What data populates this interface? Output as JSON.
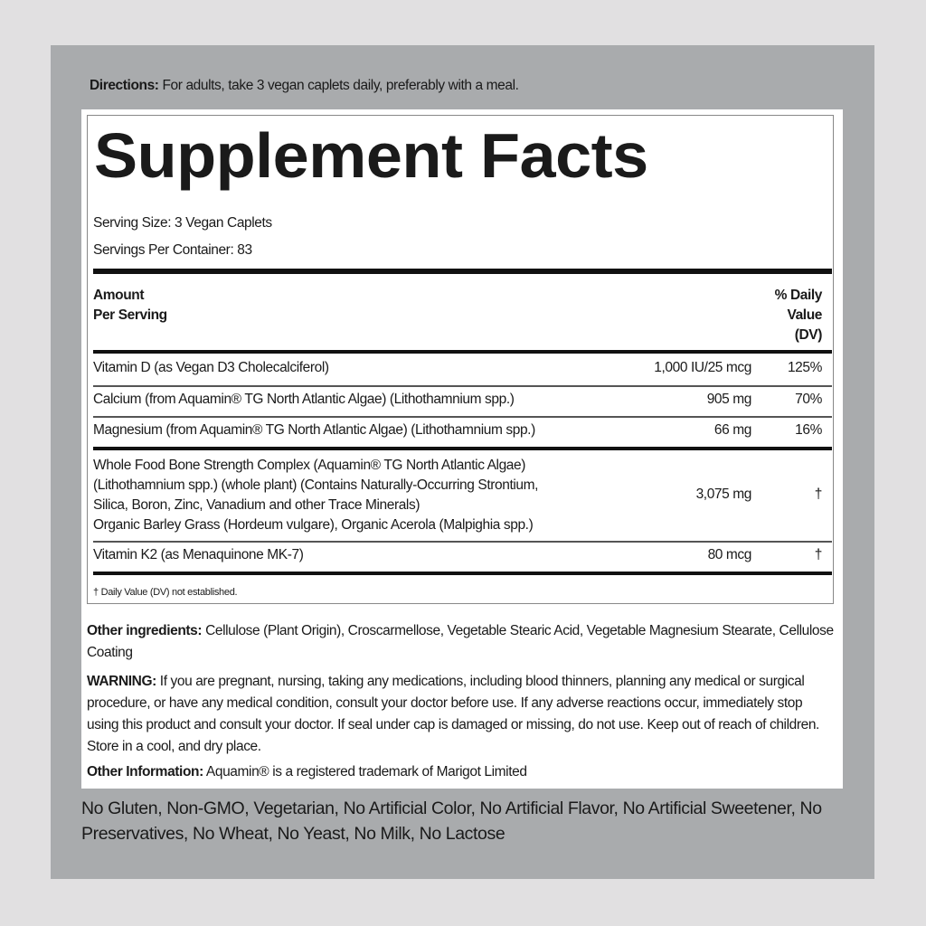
{
  "directions": {
    "label": "Directions:",
    "text": "For adults, take 3 vegan caplets daily, preferably with a meal."
  },
  "title": "Supplement Facts",
  "serving_size": "Serving Size: 3 Vegan Caplets",
  "servings_per_container": "Servings Per Container: 83",
  "header": {
    "amount_line1": "Amount",
    "amount_line2": "Per Serving",
    "dv_line1": "% Daily",
    "dv_line2": "Value",
    "dv_line3": "(DV)"
  },
  "rows": [
    {
      "name": "Vitamin D (as Vegan D3 Cholecalciferol)",
      "amount": "1,000 IU/25 mcg",
      "dv": "125%"
    },
    {
      "name": "Calcium (from Aquamin® TG North Atlantic Algae) (Lithothamnium spp.)",
      "amount": "905 mg",
      "dv": "70%"
    },
    {
      "name": "Magnesium (from Aquamin® TG North Atlantic Algae) (Lithothamnium spp.)",
      "amount": "66 mg",
      "dv": "16%"
    },
    {
      "name_lines": [
        "Whole Food Bone Strength Complex (Aquamin® TG North Atlantic Algae)",
        "(Lithothamnium spp.) (whole plant) (Contains Naturally-Occurring Strontium,",
        "Silica, Boron, Zinc, Vanadium and other Trace Minerals)",
        "Organic Barley Grass (Hordeum vulgare), Organic Acerola (Malpighia spp.)"
      ],
      "amount": "3,075 mg",
      "dv": "†"
    },
    {
      "name": "Vitamin K2 (as Menaquinone MK-7)",
      "amount": "80 mcg",
      "dv": "†"
    }
  ],
  "footnote": "† Daily Value (DV) not established.",
  "other_ingredients": {
    "label": "Other ingredients:",
    "text": "Cellulose (Plant Origin), Croscarmellose, Vegetable Stearic Acid, Vegetable Magnesium Stearate, Cellulose Coating"
  },
  "warning": {
    "label": "WARNING:",
    "text": "If you are pregnant, nursing, taking any medications, including blood thinners, planning any medical or surgical procedure, or have any medical condition, consult your doctor before use. If any adverse reactions occur, immediately stop using this product and consult your doctor. If seal under cap is damaged or missing, do not use. Keep out of reach of children. Store in a cool, and dry place."
  },
  "other_information": {
    "label": "Other Information:",
    "text": "Aquamin® is a registered trademark of Marigot Limited"
  },
  "claims": "No Gluten, Non-GMO, Vegetarian, No Artificial Color, No Artificial Flavor, No Artificial Sweetener, No Preservatives, No Wheat, No Yeast, No Milk, No Lactose"
}
